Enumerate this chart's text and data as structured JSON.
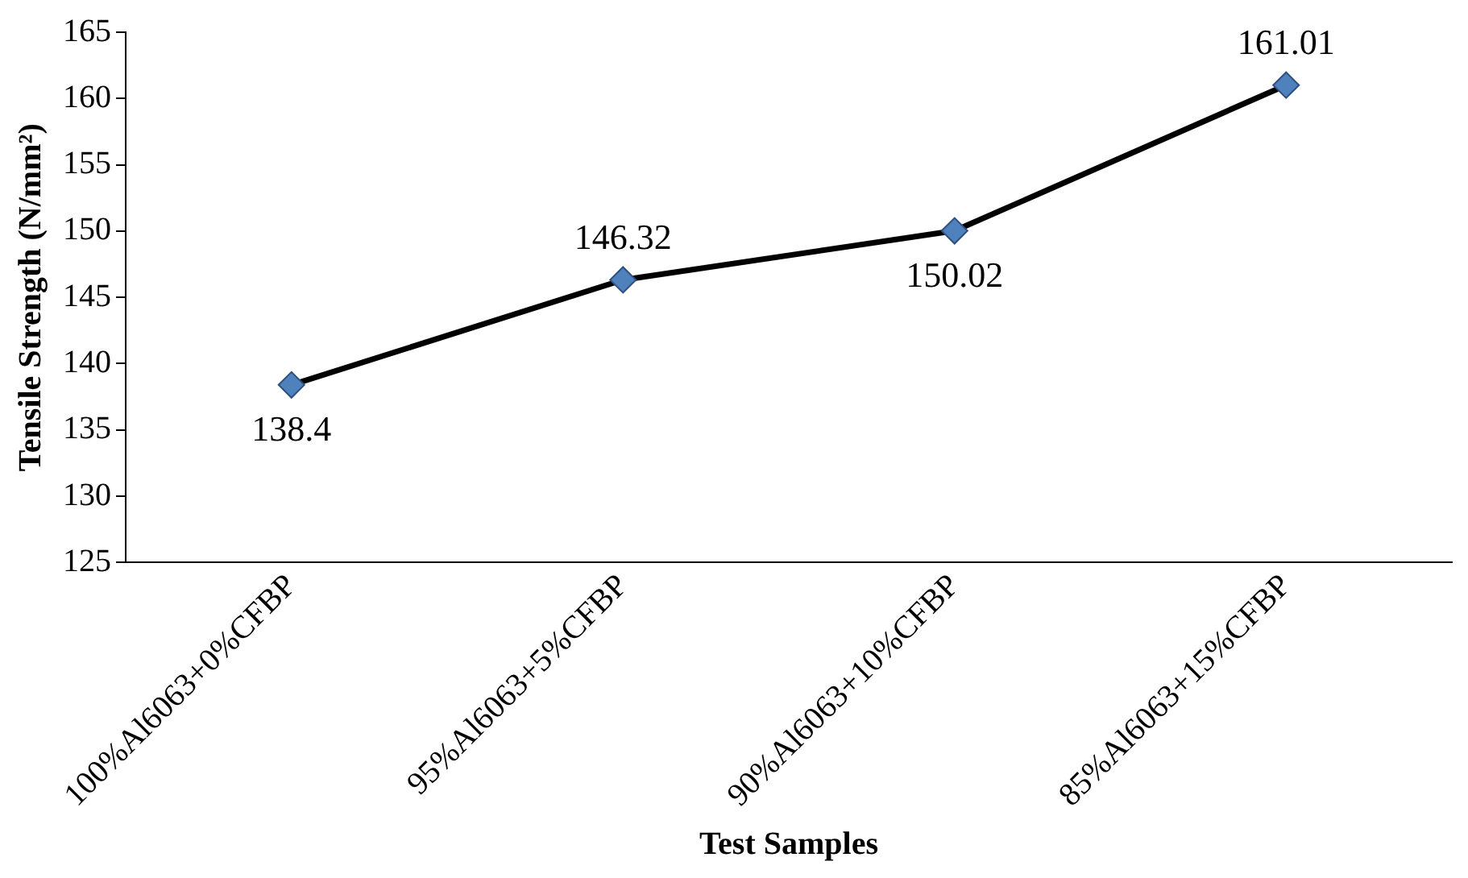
{
  "chart_data": {
    "type": "line",
    "xlabel": "Test Samples",
    "ylabel": "Tensile Strength (N/mm²)",
    "categories": [
      "100%Al6063+0%CFBP",
      "95%Al6063+5%CFBP",
      "90%Al6063+10%CFBP",
      "85%Al6063+15%CFBP"
    ],
    "series": [
      {
        "color": "#4f81bd",
        "values": [
          138.4,
          146.32,
          150.02,
          161.01
        ]
      }
    ],
    "ylim": [
      125,
      165
    ],
    "yticks": [
      125,
      130,
      135,
      140,
      145,
      150,
      155,
      160,
      165
    ],
    "grid": false,
    "legend": false,
    "marker": "diamond",
    "line_style": "solid",
    "data_labels": true
  }
}
